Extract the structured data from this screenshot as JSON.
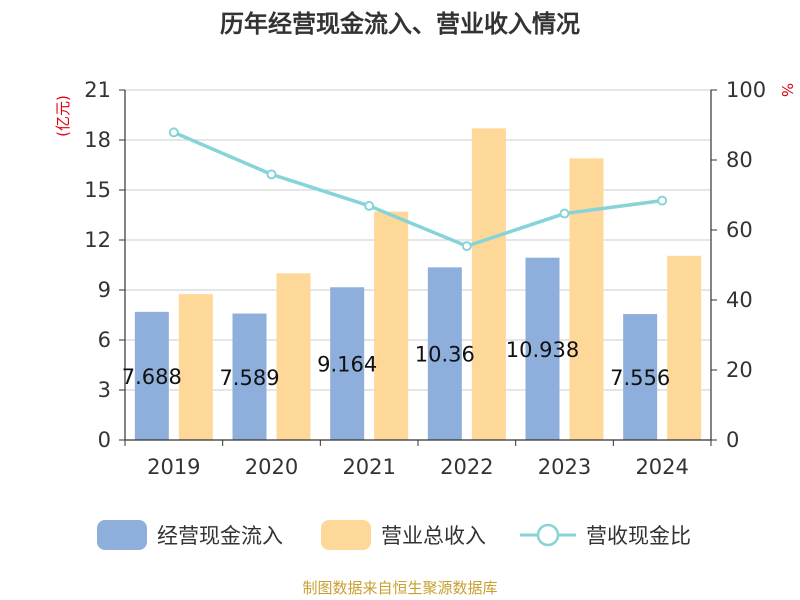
{
  "chart_data": {
    "type": "bar",
    "title": "历年经营现金流入、营业收入情况",
    "categories": [
      "2019",
      "2020",
      "2021",
      "2022",
      "2023",
      "2024"
    ],
    "series": [
      {
        "name": "经营现金流入",
        "kind": "bar",
        "axis": "left",
        "color": "#8eaedb",
        "values": [
          7.688,
          7.589,
          9.164,
          10.36,
          10.938,
          7.556
        ],
        "labels": [
          "7.688",
          "7.589",
          "9.164",
          "10.36",
          "10.938",
          "7.556"
        ]
      },
      {
        "name": "营业总收入",
        "kind": "bar",
        "axis": "left",
        "color": "#fdd898",
        "values": [
          8.75,
          10.0,
          13.7,
          18.7,
          16.9,
          11.05
        ]
      },
      {
        "name": "营收现金比",
        "kind": "line",
        "axis": "right",
        "color": "#86d4d8",
        "values": [
          87.9,
          75.9,
          66.9,
          55.4,
          64.7,
          68.4
        ]
      }
    ],
    "y_left": {
      "label": "(亿元)",
      "min": 0,
      "max": 21,
      "ticks": [
        "0",
        "3",
        "6",
        "9",
        "12",
        "15",
        "18",
        "21"
      ]
    },
    "y_right": {
      "label": "%",
      "min": 0,
      "max": 100,
      "ticks": [
        "0",
        "20",
        "40",
        "60",
        "80",
        "100"
      ]
    },
    "grid": true,
    "legend_position": "bottom"
  },
  "source": "制图数据来自恒生聚源数据库"
}
